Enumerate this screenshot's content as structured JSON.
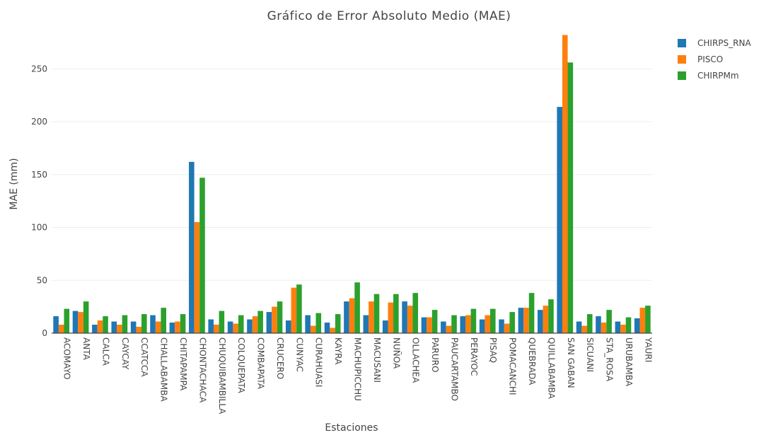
{
  "chart_data": {
    "type": "bar",
    "title": "Gráfico de Error Absoluto Medio (MAE)",
    "xlabel": "Estaciones",
    "ylabel": "MAE (mm)",
    "ylim": [
      0,
      285
    ],
    "yticks": [
      0,
      50,
      100,
      150,
      200,
      250
    ],
    "grid": true,
    "legend_position": "top-right",
    "categories": [
      "ACOMAYO",
      "ANTA",
      "CALCA",
      "CAYCAY",
      "CCATCCA",
      "CHALLABAMBA",
      "CHITAPAMPA",
      "CHONTACHACA",
      "CHUQUIBAMBILLA",
      "COLQUEPATA",
      "COMBAPATA",
      "CRUCERO",
      "CUNYAC",
      "CURAHUASI",
      "KAYRA",
      "MACHUPICCHU",
      "MACUSANI",
      "NUÑOA",
      "OLLACHEA",
      "PARURO",
      "PAUCARTAMBO",
      "PERAYOC",
      "PISAQ",
      "POMACANCHI",
      "QUEBRADA",
      "QUILLABAMBA",
      "SAN GABAN",
      "SICUANI",
      "STA_ROSA",
      "URUBAMBA",
      "YAURI"
    ],
    "series": [
      {
        "name": "CHIRPS_RNA",
        "color": "#1f77b4",
        "values": [
          16,
          21,
          8,
          11,
          11,
          17,
          10,
          162,
          13,
          11,
          13,
          20,
          12,
          17,
          10,
          30,
          17,
          12,
          30,
          15,
          11,
          16,
          13,
          13,
          24,
          22,
          214,
          11,
          16,
          11,
          14
        ]
      },
      {
        "name": "PISCO",
        "color": "#ff7f0e",
        "values": [
          8,
          20,
          12,
          8,
          6,
          11,
          11,
          105,
          8,
          9,
          16,
          25,
          43,
          7,
          5,
          33,
          30,
          29,
          26,
          15,
          7,
          17,
          17,
          9,
          24,
          26,
          282,
          7,
          10,
          8,
          24
        ]
      },
      {
        "name": "CHIRPMm",
        "color": "#2ca02c",
        "values": [
          23,
          30,
          16,
          17,
          18,
          24,
          18,
          147,
          21,
          17,
          21,
          30,
          46,
          19,
          18,
          48,
          37,
          37,
          38,
          22,
          17,
          23,
          23,
          20,
          38,
          32,
          256,
          18,
          22,
          15,
          26
        ]
      }
    ]
  }
}
